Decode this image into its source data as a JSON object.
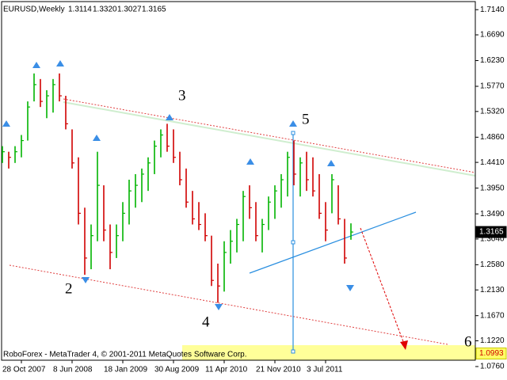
{
  "chart_data": {
    "type": "hlc",
    "header": {
      "symbol": "EURUSD,Weekly",
      "ohlc": [
        "1.3114",
        "1.3320",
        "1.3027",
        "1.3165"
      ]
    },
    "footer": "RoboForex - MetaTrader 4, © 2001-2011 MetaQuotes Software Corp.",
    "categories": [
      null,
      null,
      null,
      "28 Oct 2007",
      null,
      null,
      null,
      null,
      null,
      null,
      null,
      "8 Jun 2008",
      null,
      null,
      null,
      null,
      null,
      null,
      null,
      "18 Jan 2009",
      null,
      null,
      null,
      null,
      null,
      null,
      null,
      "30 Aug 2009",
      null,
      null,
      null,
      null,
      null,
      null,
      null,
      "11 Apr 2010",
      null,
      null,
      null,
      null,
      null,
      null,
      null,
      "21 Nov 2010",
      null,
      null,
      null,
      null,
      null,
      null,
      null,
      "3 Jul 2011",
      null,
      null,
      null,
      null
    ],
    "high": [
      1.47,
      1.46,
      1.47,
      1.49,
      1.55,
      1.6,
      1.59,
      1.57,
      1.59,
      1.6,
      1.56,
      1.5,
      1.45,
      1.36,
      1.33,
      1.46,
      1.4,
      1.33,
      1.33,
      1.37,
      1.41,
      1.42,
      1.43,
      1.45,
      1.48,
      1.5,
      1.51,
      1.5,
      1.46,
      1.43,
      1.39,
      1.37,
      1.35,
      1.31,
      1.26,
      1.3,
      1.32,
      1.34,
      1.39,
      1.4,
      1.37,
      1.34,
      1.38,
      1.4,
      1.42,
      1.46,
      1.48,
      1.45,
      1.46,
      1.45,
      1.42,
      1.37,
      1.42,
      1.4,
      1.34,
      1.332
    ],
    "low": [
      1.44,
      1.43,
      1.44,
      1.45,
      1.48,
      1.55,
      1.54,
      1.52,
      1.53,
      1.55,
      1.5,
      1.43,
      1.33,
      1.24,
      1.25,
      1.3,
      1.3,
      1.25,
      1.27,
      1.3,
      1.33,
      1.36,
      1.37,
      1.39,
      1.42,
      1.45,
      1.46,
      1.44,
      1.4,
      1.36,
      1.33,
      1.32,
      1.3,
      1.22,
      1.19,
      1.21,
      1.26,
      1.28,
      1.3,
      1.34,
      1.3,
      1.28,
      1.32,
      1.34,
      1.36,
      1.38,
      1.4,
      1.38,
      1.39,
      1.38,
      1.34,
      1.3,
      1.35,
      1.33,
      1.26,
      1.3027
    ],
    "close": [
      1.46,
      1.45,
      1.46,
      1.48,
      1.54,
      1.58,
      1.55,
      1.56,
      1.58,
      1.56,
      1.51,
      1.44,
      1.35,
      1.27,
      1.31,
      1.4,
      1.32,
      1.28,
      1.31,
      1.35,
      1.39,
      1.4,
      1.42,
      1.44,
      1.47,
      1.49,
      1.47,
      1.45,
      1.41,
      1.37,
      1.34,
      1.33,
      1.31,
      1.23,
      1.22,
      1.28,
      1.3,
      1.33,
      1.38,
      1.36,
      1.31,
      1.33,
      1.37,
      1.39,
      1.41,
      1.45,
      1.42,
      1.44,
      1.41,
      1.39,
      1.35,
      1.32,
      1.41,
      1.34,
      1.27,
      1.3165
    ],
    "up_color": "#00b400",
    "down_color": "#d00000",
    "ylim": [
      1.076,
      1.7313
    ],
    "yticks": [
      {
        "value": 1.714,
        "label": "1.7140"
      },
      {
        "value": 1.669,
        "label": "1.6690"
      },
      {
        "value": 1.623,
        "label": "1.6230"
      },
      {
        "value": 1.577,
        "label": "1.5770"
      },
      {
        "value": 1.532,
        "label": "1.5320"
      },
      {
        "value": 1.486,
        "label": "1.4860"
      },
      {
        "value": 1.441,
        "label": "1.4410"
      },
      {
        "value": 1.395,
        "label": "1.3950"
      },
      {
        "value": 1.349,
        "label": "1.3490"
      },
      {
        "value": 1.304,
        "label": "1.3040"
      },
      {
        "value": 1.258,
        "label": "1.2580"
      },
      {
        "value": 1.213,
        "label": "1.2130"
      },
      {
        "value": 1.167,
        "label": "1.1670"
      },
      {
        "value": 1.122,
        "label": "1.1220"
      },
      {
        "value": 1.076,
        "label": "1.0760"
      }
    ],
    "price_labels": [
      {
        "value": 1.3165,
        "label": "1.3165",
        "color": "#000000"
      },
      {
        "value": 1.0993,
        "label": "1.0993",
        "color": "#ffff66"
      }
    ],
    "annotations": [
      "2",
      "3",
      "4",
      "5",
      "6"
    ]
  }
}
